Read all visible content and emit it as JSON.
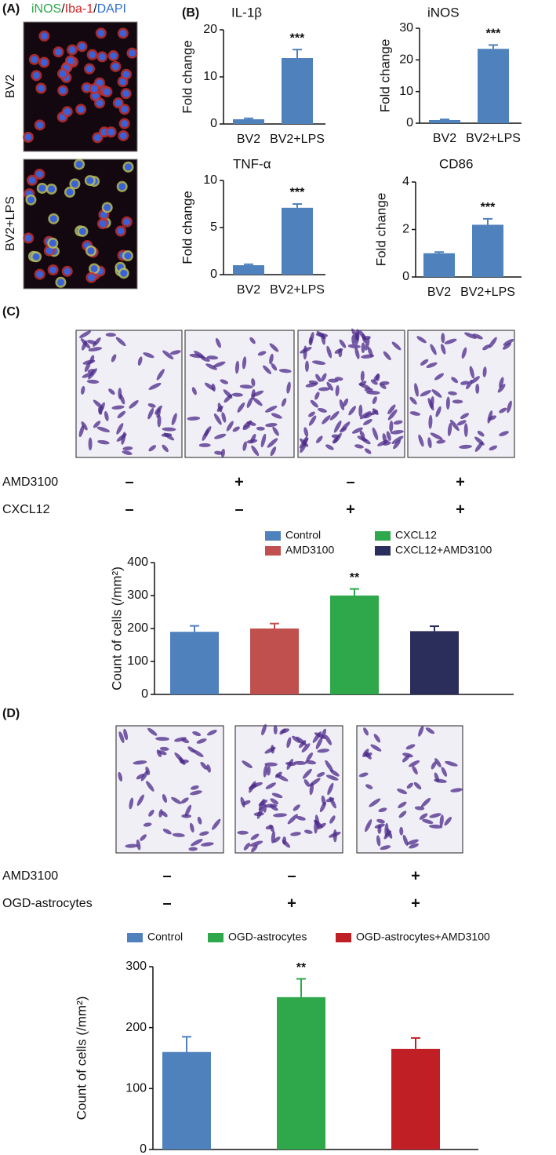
{
  "panel_labels": [
    "(A)",
    "(B)",
    "(C)",
    "(D)"
  ],
  "panel_a": {
    "stain": [
      "iNOS",
      "/",
      "Iba-1",
      "/",
      "DAPI"
    ],
    "row_labels": [
      "BV2",
      "BV2+LPS"
    ]
  },
  "chart_data": [
    {
      "type": "bar",
      "title": "IL-1β",
      "y_label": "Fold change",
      "categories": [
        "BV2",
        "BV2+LPS"
      ],
      "values": [
        1,
        14
      ],
      "errors": [
        0.2,
        1.8
      ],
      "color": "#4f81bd",
      "ylim": [
        0,
        20
      ],
      "yticks": [
        0,
        10,
        20
      ],
      "annotations": [
        {
          "category": "BV2+LPS",
          "text": "***"
        }
      ]
    },
    {
      "type": "bar",
      "title": "iNOS",
      "y_label": "Fold change",
      "categories": [
        "BV2",
        "BV2+LPS"
      ],
      "values": [
        1,
        23.5
      ],
      "errors": [
        0.2,
        1.2
      ],
      "color": "#4f81bd",
      "ylim": [
        0,
        30
      ],
      "yticks": [
        0,
        10,
        20,
        30
      ],
      "annotations": [
        {
          "category": "BV2+LPS",
          "text": "***"
        }
      ]
    },
    {
      "type": "bar",
      "title": "TNF-α",
      "y_label": "Fold change",
      "categories": [
        "BV2",
        "BV2+LPS"
      ],
      "values": [
        1,
        7.1
      ],
      "errors": [
        0.1,
        0.4
      ],
      "color": "#4f81bd",
      "ylim": [
        0,
        10
      ],
      "yticks": [
        0,
        5,
        10
      ],
      "annotations": [
        {
          "category": "BV2+LPS",
          "text": "***"
        }
      ]
    },
    {
      "type": "bar",
      "title": "CD86",
      "y_label": "Fold change",
      "categories": [
        "BV2",
        "BV2+LPS"
      ],
      "values": [
        1,
        2.2
      ],
      "errors": [
        0.05,
        0.25
      ],
      "color": "#4f81bd",
      "ylim": [
        0,
        4
      ],
      "yticks": [
        0,
        2,
        4
      ],
      "annotations": [
        {
          "category": "BV2+LPS",
          "text": "***"
        }
      ]
    },
    {
      "type": "bar",
      "y_label": "Count of cells (/mm²)",
      "categories": [
        "Control",
        "AMD3100",
        "CXCL12",
        "CXCL12+AMD3100"
      ],
      "values": [
        190,
        200,
        300,
        192
      ],
      "errors": [
        18,
        15,
        20,
        15
      ],
      "colors": [
        "#4f81bd",
        "#c0504d",
        "#2ea84a",
        "#2b2d5a"
      ],
      "legend": true,
      "ylim": [
        0,
        400
      ],
      "yticks": [
        0,
        100,
        200,
        300,
        400
      ],
      "annotations": [
        {
          "category": "CXCL12",
          "text": "**"
        }
      ]
    },
    {
      "type": "bar",
      "y_label": "Count of cells (/mm²)",
      "categories": [
        "Control",
        "OGD-astrocytes",
        "OGD-astrocytes+AMD3100"
      ],
      "values": [
        160,
        250,
        165
      ],
      "errors": [
        25,
        30,
        18
      ],
      "colors": [
        "#4f81bd",
        "#2ea84a",
        "#c01f25"
      ],
      "legend": true,
      "ylim": [
        0,
        300
      ],
      "yticks": [
        0,
        100,
        200,
        300
      ],
      "annotations": [
        {
          "category": "OGD-astrocytes",
          "text": "**"
        }
      ]
    }
  ],
  "panel_c_conditions": [
    {
      "label": "AMD3100",
      "signs": [
        "–",
        "+",
        "–",
        "+"
      ]
    },
    {
      "label": "CXCL12",
      "signs": [
        "–",
        "–",
        "+",
        "+"
      ]
    }
  ],
  "panel_d_conditions": [
    {
      "label": "AMD3100",
      "signs": [
        "–",
        "–",
        "+"
      ]
    },
    {
      "label": "OGD-astrocytes",
      "signs": [
        "–",
        "+",
        "+"
      ]
    }
  ]
}
